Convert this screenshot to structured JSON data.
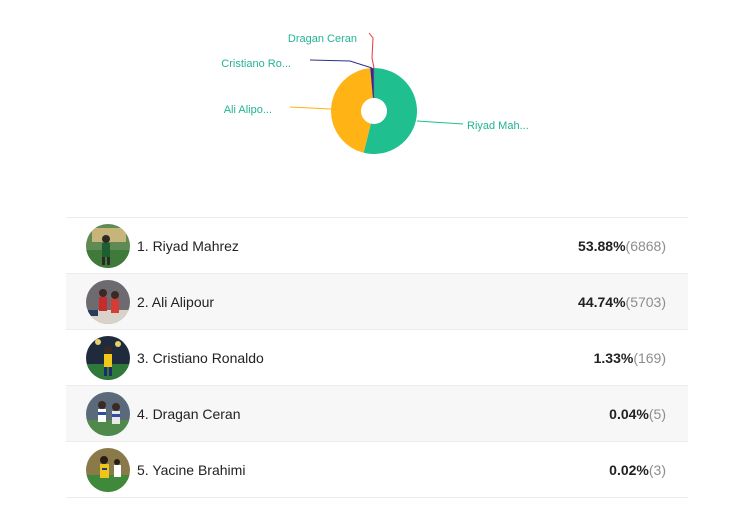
{
  "colors": {
    "series": [
      "#1fbf8f",
      "#ffb314",
      "#2d2d8f",
      "#e8363c",
      "#8a4fd8"
    ],
    "label": "#23b394",
    "text": "#222222",
    "muted": "#8d8d8d"
  },
  "chart_data": {
    "type": "pie",
    "style": "donut",
    "title": "",
    "categories": [
      "Riyad Mahrez",
      "Ali Alipour",
      "Cristiano Ronaldo",
      "Dragan Ceran",
      "Yacine Brahimi"
    ],
    "values": [
      53.88,
      44.74,
      1.33,
      0.04,
      0.02
    ],
    "slice_labels": [
      "Riyad Mah...",
      "Ali Alipo...",
      "Cristiano Ro...",
      "Dragan Ceran",
      ""
    ]
  },
  "results": [
    {
      "rank_name": "1. Riyad Mahrez",
      "percent": "53.88%",
      "votes": "(6868)",
      "avatar_icon": "player-photo-icon"
    },
    {
      "rank_name": "2. Ali Alipour",
      "percent": "44.74%",
      "votes": "(5703)",
      "avatar_icon": "player-photo-icon"
    },
    {
      "rank_name": "3. Cristiano Ronaldo",
      "percent": "1.33%",
      "votes": "(169)",
      "avatar_icon": "player-photo-icon"
    },
    {
      "rank_name": "4. Dragan Ceran",
      "percent": "0.04%",
      "votes": "(5)",
      "avatar_icon": "player-photo-icon"
    },
    {
      "rank_name": "5. Yacine Brahimi",
      "percent": "0.02%",
      "votes": "(3)",
      "avatar_icon": "player-photo-icon"
    }
  ]
}
